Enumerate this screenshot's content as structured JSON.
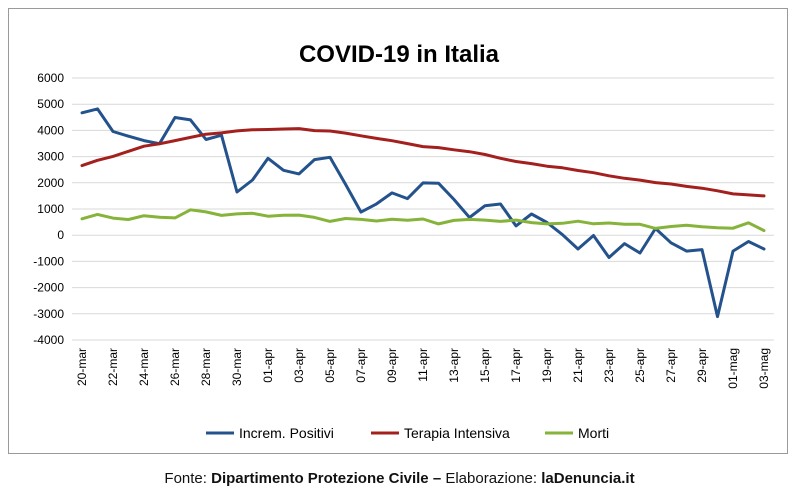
{
  "chart_data": {
    "type": "line",
    "title": "COVID-19 in Italia",
    "xlabel": "",
    "ylabel": "",
    "ylim": [
      -4000,
      6000
    ],
    "yticks": [
      6000,
      5000,
      4000,
      3000,
      2000,
      1000,
      0,
      -1000,
      -2000,
      -3000,
      -4000
    ],
    "grid": true,
    "legend_position": "bottom",
    "x": [
      "20-mar",
      "21-mar",
      "22-mar",
      "23-mar",
      "24-mar",
      "25-mar",
      "26-mar",
      "27-mar",
      "28-mar",
      "29-mar",
      "30-mar",
      "31-mar",
      "01-apr",
      "02-apr",
      "03-apr",
      "04-apr",
      "05-apr",
      "06-apr",
      "07-apr",
      "08-apr",
      "09-apr",
      "10-apr",
      "11-apr",
      "12-apr",
      "13-apr",
      "14-apr",
      "15-apr",
      "16-apr",
      "17-apr",
      "18-apr",
      "19-apr",
      "20-apr",
      "21-apr",
      "22-apr",
      "23-apr",
      "24-apr",
      "25-apr",
      "26-apr",
      "27-apr",
      "28-apr",
      "29-apr",
      "30-apr",
      "01-mag",
      "02-mag",
      "03-mag"
    ],
    "x_tick_labels": [
      "20-mar",
      "22-mar",
      "24-mar",
      "26-mar",
      "28-mar",
      "30-mar",
      "01-apr",
      "03-apr",
      "05-apr",
      "07-apr",
      "09-apr",
      "11-apr",
      "13-apr",
      "15-apr",
      "17-apr",
      "19-apr",
      "21-apr",
      "23-apr",
      "25-apr",
      "27-apr",
      "29-apr",
      "01-mag",
      "03-mag"
    ],
    "series": [
      {
        "name": "Increm. Positivi",
        "color": "#24528c",
        "values": [
          4670,
          4821,
          3957,
          3780,
          3612,
          3491,
          4492,
          4401,
          3651,
          3815,
          1648,
          2107,
          2937,
          2477,
          2339,
          2886,
          2972,
          1941,
          880,
          1195,
          1615,
          1396,
          1996,
          1984,
          1363,
          675,
          1127,
          1189,
          355,
          809,
          486,
          20,
          -528,
          -10,
          -851,
          -321,
          -680,
          256,
          -290,
          -608,
          -548,
          -3106,
          -608,
          -239,
          -525
        ]
      },
      {
        "name": "Terapia Intensiva",
        "color": "#a4201e",
        "values": [
          2655,
          2857,
          3009,
          3204,
          3396,
          3489,
          3612,
          3732,
          3856,
          3906,
          3981,
          4023,
          4035,
          4053,
          4068,
          3994,
          3977,
          3898,
          3792,
          3693,
          3605,
          3497,
          3381,
          3343,
          3260,
          3186,
          3079,
          2936,
          2812,
          2733,
          2635,
          2573,
          2471,
          2384,
          2267,
          2173,
          2102,
          2009,
          1956,
          1863,
          1795,
          1694,
          1578,
          1539,
          1501
        ]
      },
      {
        "name": "Morti",
        "color": "#86b33a",
        "values": [
          627,
          793,
          651,
          601,
          743,
          683,
          662,
          969,
          889,
          756,
          812,
          837,
          727,
          760,
          766,
          681,
          525,
          636,
          604,
          542,
          610,
          570,
          619,
          431,
          566,
          602,
          578,
          525,
          575,
          482,
          433,
          454,
          534,
          437,
          464,
          420,
          415,
          260,
          333,
          382,
          323,
          285,
          269,
          474,
          174
        ]
      }
    ]
  },
  "footer": {
    "prefix": "Fonte: ",
    "source": "Dipartimento Protezione Civile – ",
    "middle": "Elaborazione: ",
    "author": "laDenuncia.it"
  }
}
